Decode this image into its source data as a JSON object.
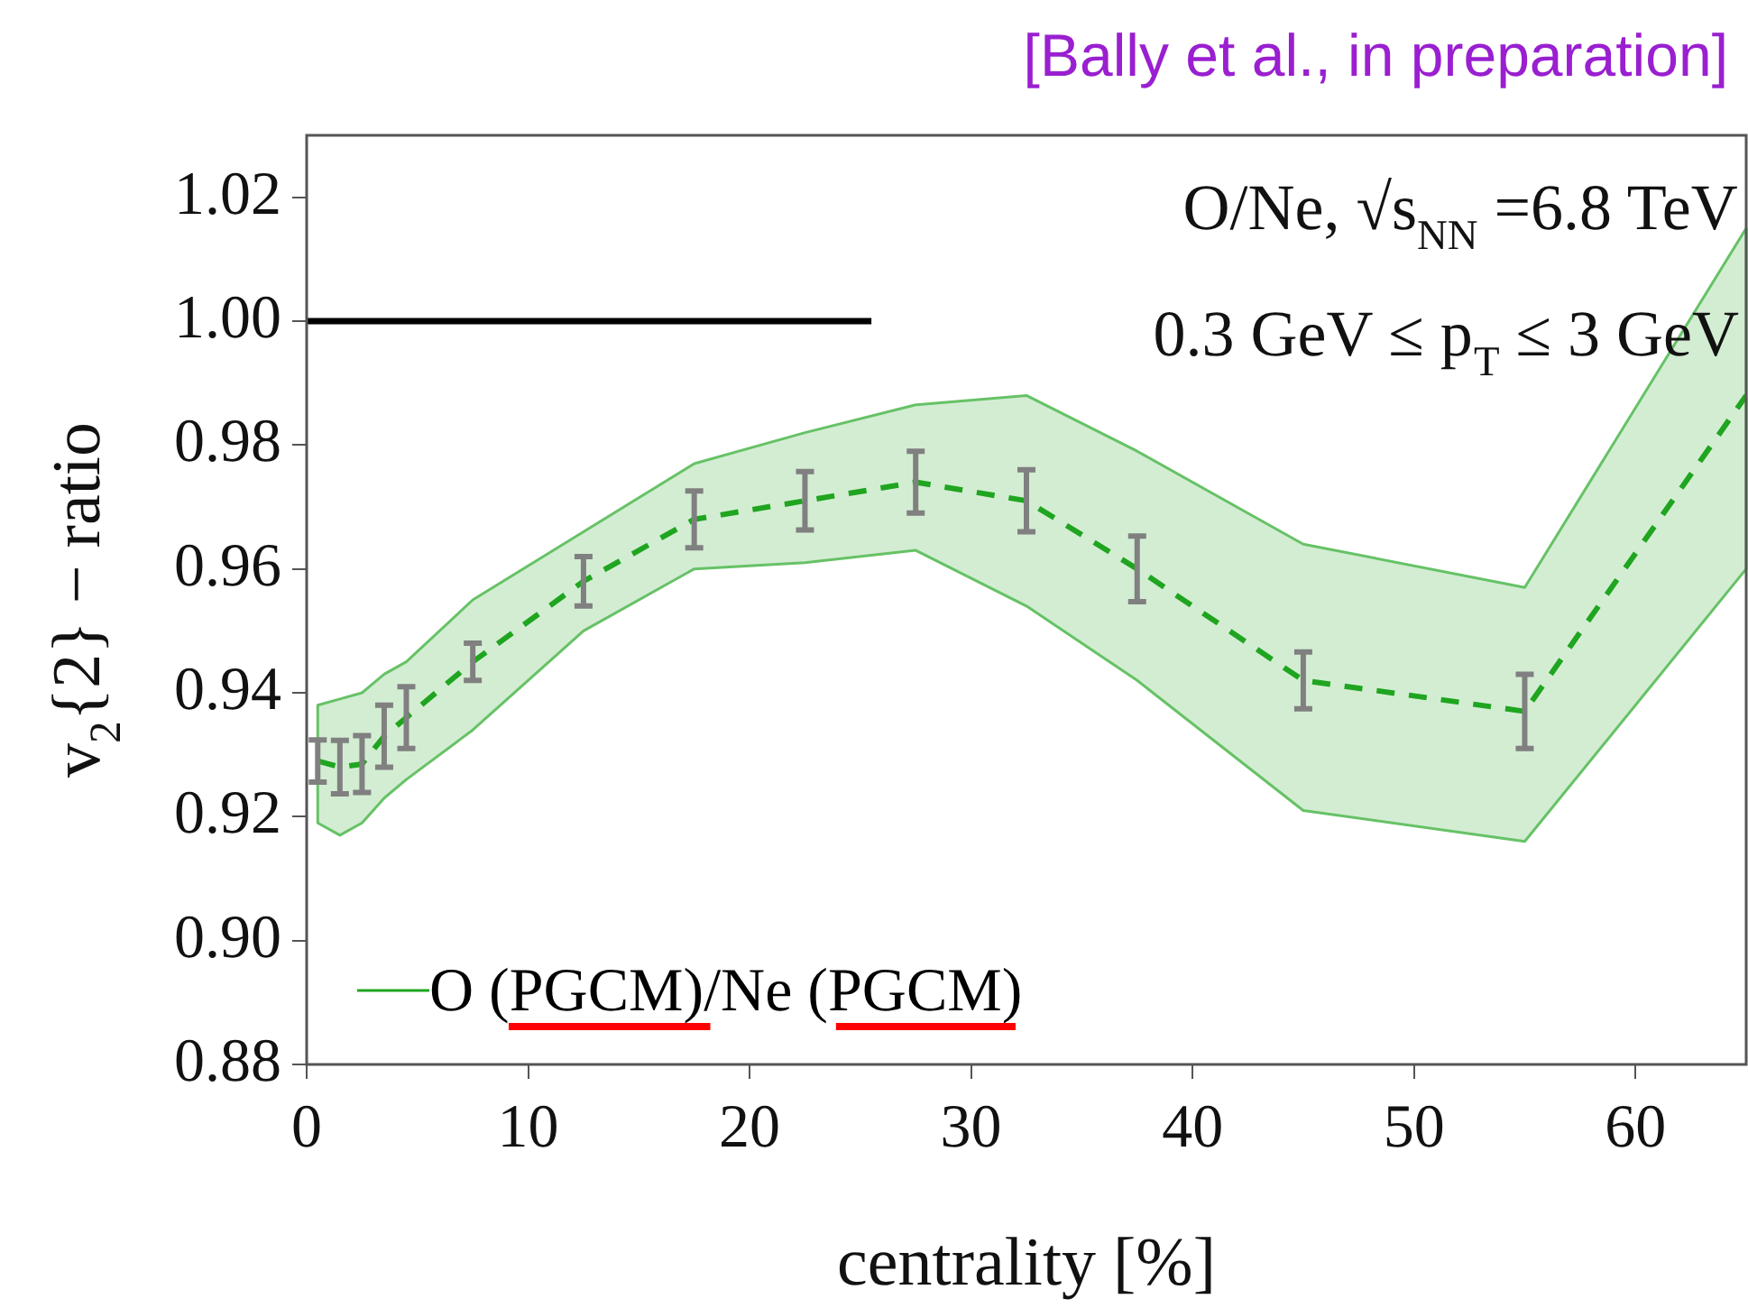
{
  "chart_data": {
    "type": "line",
    "xlabel": "centrality [%]",
    "ylabel": "v$_{2}${2} − ratio",
    "annotations": [
      "[Bally et al., in preparation]",
      "O/Ne, √s$_{NN}$ =6.8 TeV",
      "0.3 GeV ≤ p$_{T}$ ≤ 3 GeV"
    ],
    "series": [
      {
        "name": "O (PGCM)/Ne (PGCM)",
        "color": "#1fa51f",
        "line_style": "dashed",
        "x": [
          0.5,
          1.5,
          2.5,
          3.5,
          4.5,
          7.5,
          12.5,
          17.5,
          22.5,
          27.5,
          32.5,
          37.5,
          45,
          55,
          65
        ],
        "values": [
          0.929,
          0.928,
          0.9285,
          0.933,
          0.936,
          0.945,
          0.958,
          0.968,
          0.971,
          0.974,
          0.971,
          0.96,
          0.942,
          0.937,
          0.988
        ],
        "errors": [
          0.0034,
          0.0043,
          0.0046,
          0.005,
          0.005,
          0.003,
          0.004,
          0.0046,
          0.0047,
          0.005,
          0.005,
          0.0053,
          0.0046,
          0.006,
          null
        ],
        "lower": [
          0.919,
          0.917,
          0.919,
          0.923,
          0.926,
          0.934,
          0.95,
          0.96,
          0.961,
          0.963,
          0.954,
          0.942,
          0.921,
          0.916,
          0.96
        ],
        "upper": [
          0.938,
          0.939,
          0.94,
          0.943,
          0.945,
          0.955,
          0.966,
          0.977,
          0.982,
          0.9865,
          0.988,
          0.979,
          0.964,
          0.957,
          1.015
        ]
      },
      {
        "color": "#000000",
        "line_style": "solid",
        "x": [
          0,
          25.5
        ],
        "values": [
          1,
          1
        ]
      }
    ],
    "xlim": [
      0,
      65
    ],
    "xticks": [
      0,
      10,
      20,
      30,
      40,
      50,
      60
    ],
    "ylim": [
      0.88,
      1.03
    ],
    "yticks": [
      0.88,
      {
        "value": 0.9,
        "label": "0.90"
      },
      0.92,
      0.94,
      0.96,
      0.98,
      {
        "value": 1,
        "label": "1.00"
      },
      1.02
    ],
    "grid": false,
    "legend": "bottom left",
    "marker": "none"
  }
}
